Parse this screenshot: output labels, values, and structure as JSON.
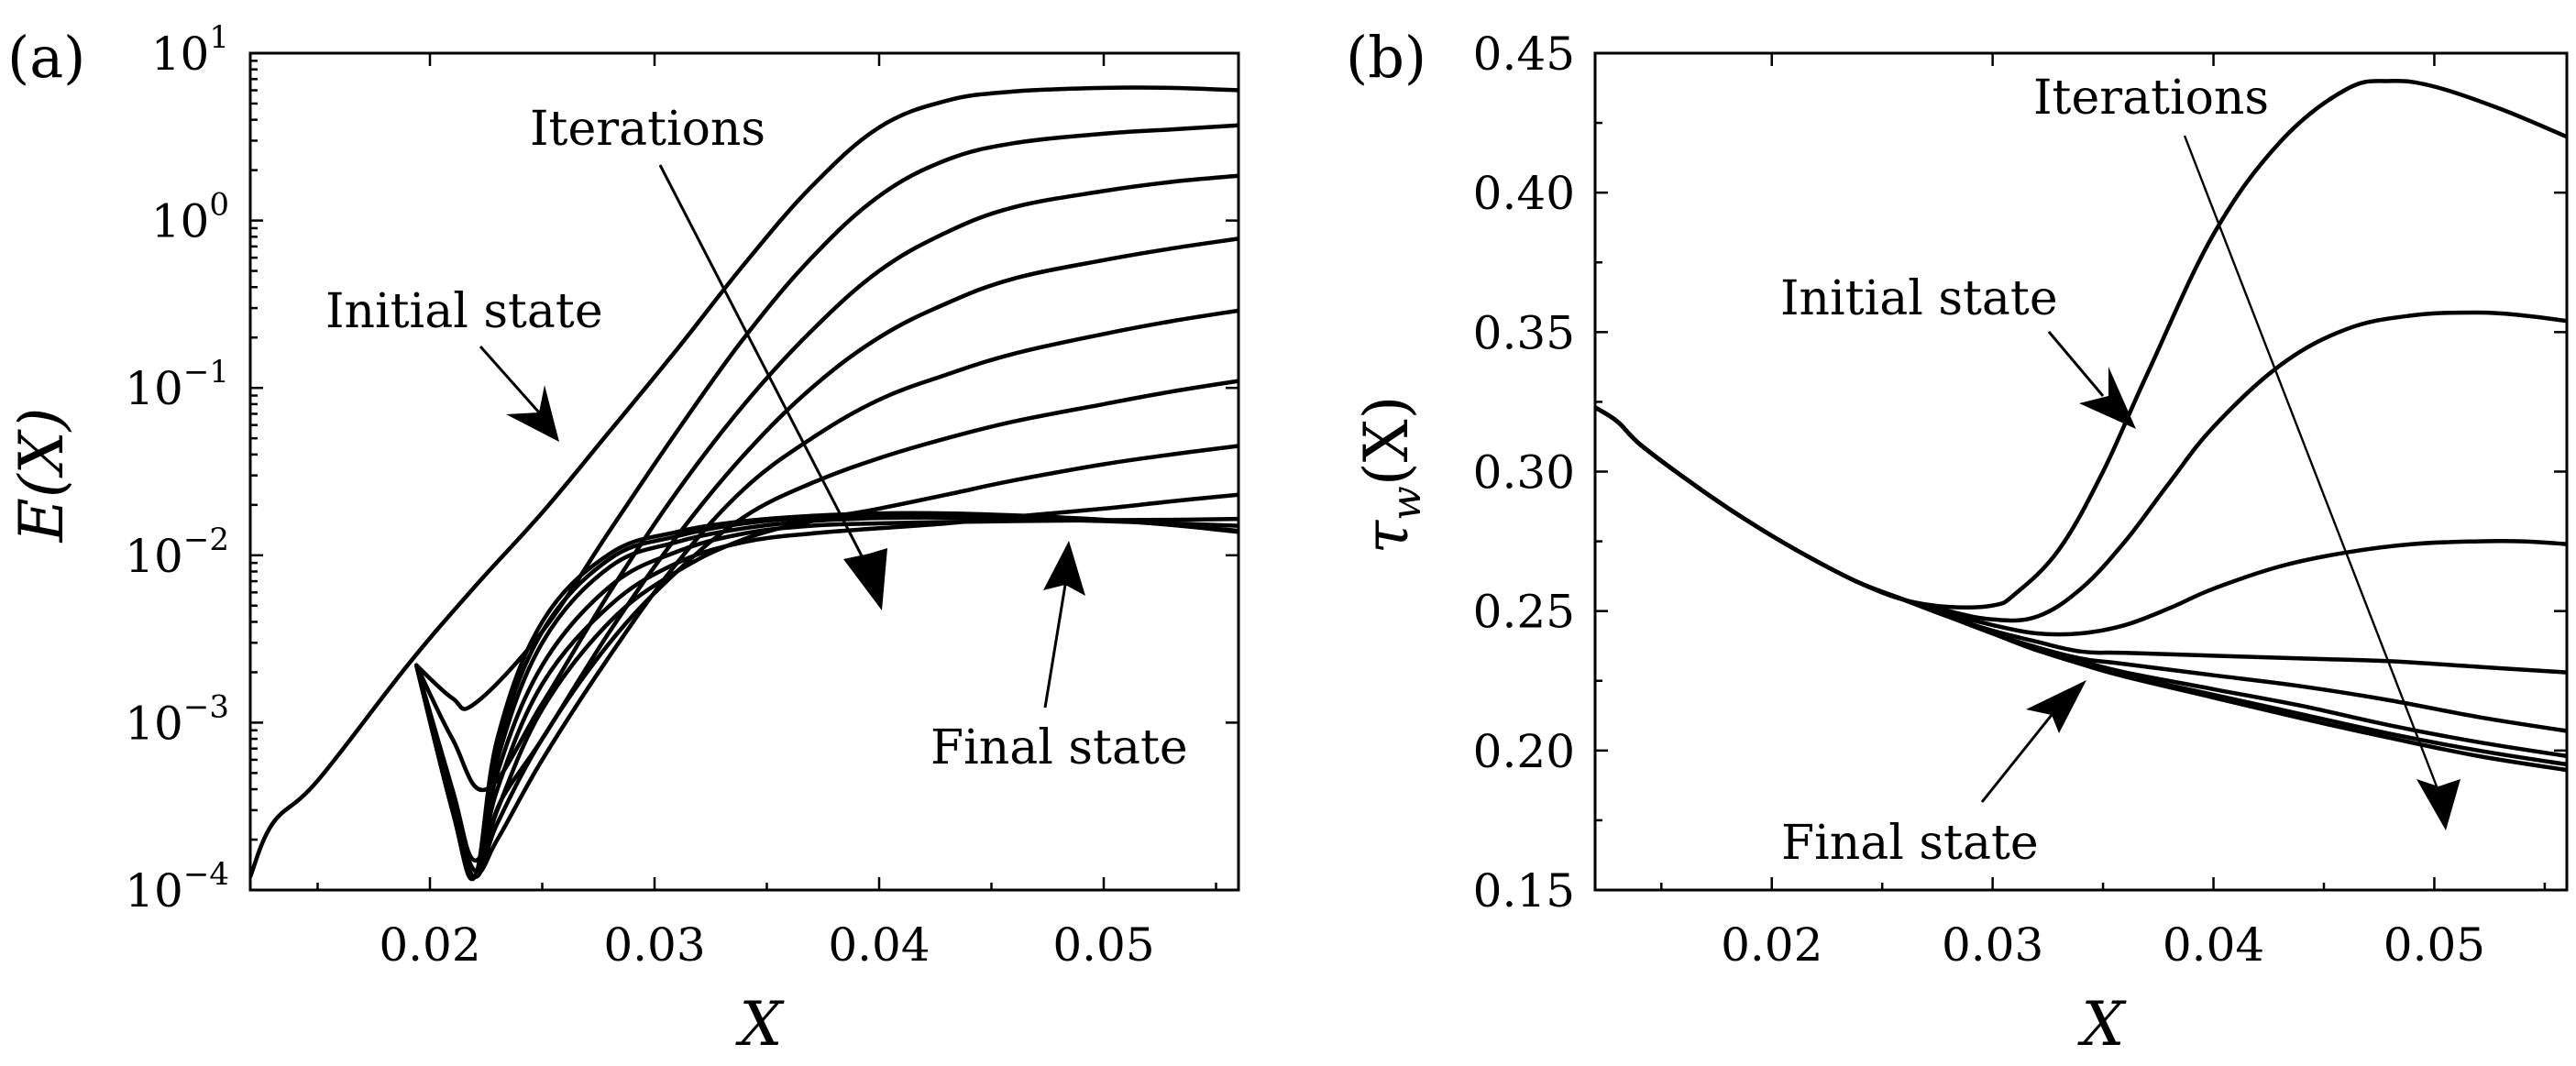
{
  "chart_data": [
    {
      "panel": "(a)",
      "panel_label": "(a)",
      "type": "line",
      "xlabel": "X",
      "ylabel": "E(X)",
      "yscale": "log",
      "xlim": [
        0.012,
        0.056
      ],
      "ylim": [
        0.0001,
        10
      ],
      "xticks": [
        0.02,
        0.03,
        0.04,
        0.05
      ],
      "xtick_labels": [
        "0.02",
        "0.03",
        "0.04",
        "0.05"
      ],
      "yticks": [
        {
          "value": 0.0001,
          "base": "10",
          "exp": "−4"
        },
        {
          "value": 0.001,
          "base": "10",
          "exp": "−3"
        },
        {
          "value": 0.01,
          "base": "10",
          "exp": "−2"
        },
        {
          "value": 0.1,
          "base": "10",
          "exp": "−1"
        },
        {
          "value": 1,
          "base": "10",
          "exp": "0"
        },
        {
          "value": 10,
          "base": "10",
          "exp": "1"
        }
      ],
      "series": [
        {
          "name": "Initial state",
          "x": [
            0.012,
            0.013,
            0.015,
            0.019,
            0.022,
            0.025,
            0.028,
            0.031,
            0.034,
            0.037,
            0.04,
            0.043,
            0.046,
            0.05,
            0.053,
            0.056
          ],
          "y": [
            0.00012,
            0.00025,
            0.00045,
            0.0022,
            0.0065,
            0.018,
            0.055,
            0.17,
            0.55,
            1.6,
            3.6,
            5.2,
            5.9,
            6.2,
            6.2,
            6.0
          ]
        },
        {
          "name": "iteration 1",
          "x": [
            0.0194,
            0.021,
            0.022,
            0.025,
            0.028,
            0.031,
            0.034,
            0.037,
            0.04,
            0.043,
            0.046,
            0.05,
            0.053,
            0.056
          ],
          "y": [
            0.0022,
            0.0014,
            0.0013,
            0.0035,
            0.014,
            0.055,
            0.2,
            0.6,
            1.4,
            2.3,
            2.9,
            3.3,
            3.5,
            3.7
          ]
        },
        {
          "name": "iteration 2",
          "x": [
            0.0194,
            0.021,
            0.0225,
            0.025,
            0.028,
            0.031,
            0.034,
            0.037,
            0.04,
            0.043,
            0.046,
            0.05,
            0.053,
            0.056
          ],
          "y": [
            0.0022,
            0.0008,
            0.0004,
            0.0013,
            0.006,
            0.024,
            0.08,
            0.22,
            0.5,
            0.85,
            1.2,
            1.5,
            1.7,
            1.85
          ]
        },
        {
          "name": "iteration 3",
          "x": [
            0.0194,
            0.021,
            0.022,
            0.0232,
            0.025,
            0.028,
            0.031,
            0.034,
            0.037,
            0.04,
            0.043,
            0.046,
            0.05,
            0.053,
            0.056
          ],
          "y": [
            0.0022,
            0.0004,
            0.00015,
            0.00035,
            0.0008,
            0.0035,
            0.013,
            0.04,
            0.1,
            0.2,
            0.32,
            0.45,
            0.58,
            0.68,
            0.78
          ]
        },
        {
          "name": "iteration 4",
          "x": [
            0.0194,
            0.021,
            0.022,
            0.023,
            0.025,
            0.028,
            0.031,
            0.034,
            0.037,
            0.04,
            0.043,
            0.046,
            0.05,
            0.053,
            0.056
          ],
          "y": [
            0.0022,
            0.00035,
            0.00013,
            0.0002,
            0.0006,
            0.0025,
            0.009,
            0.025,
            0.05,
            0.085,
            0.12,
            0.16,
            0.21,
            0.25,
            0.29
          ]
        },
        {
          "name": "iteration 5",
          "x": [
            0.0194,
            0.021,
            0.022,
            0.023,
            0.025,
            0.028,
            0.031,
            0.034,
            0.037,
            0.04,
            0.043,
            0.046,
            0.05,
            0.053,
            0.056
          ],
          "y": [
            0.0022,
            0.0003,
            0.00012,
            0.00025,
            0.0008,
            0.003,
            0.008,
            0.017,
            0.027,
            0.038,
            0.05,
            0.063,
            0.08,
            0.095,
            0.11
          ]
        },
        {
          "name": "iteration 6",
          "x": [
            0.0194,
            0.021,
            0.022,
            0.023,
            0.025,
            0.028,
            0.031,
            0.034,
            0.037,
            0.04,
            0.043,
            0.046,
            0.05,
            0.053,
            0.056
          ],
          "y": [
            0.0022,
            0.0003,
            0.00012,
            0.0003,
            0.0012,
            0.004,
            0.008,
            0.0125,
            0.016,
            0.019,
            0.023,
            0.028,
            0.035,
            0.04,
            0.045
          ]
        },
        {
          "name": "iteration 7",
          "x": [
            0.0194,
            0.021,
            0.022,
            0.023,
            0.025,
            0.028,
            0.031,
            0.034,
            0.037,
            0.04,
            0.043,
            0.046,
            0.05,
            0.053,
            0.056
          ],
          "y": [
            0.0022,
            0.0003,
            0.00012,
            0.0004,
            0.0017,
            0.005,
            0.009,
            0.012,
            0.0135,
            0.0145,
            0.0155,
            0.017,
            0.019,
            0.021,
            0.023
          ]
        },
        {
          "name": "iteration 8",
          "x": [
            0.0194,
            0.021,
            0.022,
            0.023,
            0.025,
            0.028,
            0.031,
            0.034,
            0.037,
            0.04,
            0.043,
            0.046,
            0.05,
            0.053,
            0.056
          ],
          "y": [
            0.0022,
            0.0003,
            0.00012,
            0.0005,
            0.0022,
            0.0065,
            0.0105,
            0.0135,
            0.015,
            0.0155,
            0.0158,
            0.016,
            0.0162,
            0.0163,
            0.0165
          ]
        },
        {
          "name": "iteration 9",
          "x": [
            0.0194,
            0.021,
            0.022,
            0.023,
            0.025,
            0.028,
            0.031,
            0.034,
            0.037,
            0.04,
            0.043,
            0.046,
            0.05,
            0.053,
            0.056
          ],
          "y": [
            0.0022,
            0.0003,
            0.00012,
            0.0006,
            0.003,
            0.0085,
            0.012,
            0.0145,
            0.016,
            0.0167,
            0.0168,
            0.0165,
            0.016,
            0.0155,
            0.015
          ]
        },
        {
          "name": "iteration 10",
          "x": [
            0.0194,
            0.021,
            0.022,
            0.023,
            0.025,
            0.028,
            0.031,
            0.034,
            0.037,
            0.04,
            0.043,
            0.046,
            0.05,
            0.053,
            0.056
          ],
          "y": [
            0.0022,
            0.0003,
            0.00012,
            0.0007,
            0.0035,
            0.0095,
            0.013,
            0.0155,
            0.0168,
            0.0174,
            0.0174,
            0.017,
            0.0162,
            0.0152,
            0.014
          ]
        },
        {
          "name": "Final state",
          "x": [
            0.0194,
            0.021,
            0.022,
            0.023,
            0.025,
            0.028,
            0.031,
            0.034,
            0.037,
            0.04,
            0.043,
            0.046,
            0.05,
            0.053,
            0.056
          ],
          "y": [
            0.0022,
            0.0003,
            0.00012,
            0.0008,
            0.004,
            0.0102,
            0.0138,
            0.016,
            0.0172,
            0.0178,
            0.0178,
            0.0173,
            0.0163,
            0.0152,
            0.0138
          ]
        }
      ],
      "annotations": [
        {
          "id": "initial",
          "text": "Initial state"
        },
        {
          "id": "iterations",
          "text": "Iterations"
        },
        {
          "id": "final",
          "text": "Final state"
        }
      ]
    },
    {
      "panel": "(b)",
      "panel_label": "(b)",
      "type": "line",
      "xlabel": "X",
      "ylabel": "τw(X)",
      "ylabel_main": "τ",
      "ylabel_sub": "w",
      "ylabel_arg": "(X)",
      "yscale": "linear",
      "xlim": [
        0.012,
        0.056
      ],
      "ylim": [
        0.15,
        0.45
      ],
      "xticks": [
        0.02,
        0.03,
        0.04,
        0.05
      ],
      "xtick_labels": [
        "0.02",
        "0.03",
        "0.04",
        "0.05"
      ],
      "yticks": [
        0.15,
        0.2,
        0.25,
        0.3,
        0.35,
        0.4,
        0.45
      ],
      "ytick_labels": [
        "0.15",
        "0.20",
        "0.25",
        "0.30",
        "0.35",
        "0.40",
        "0.45"
      ],
      "base_curve": {
        "x": [
          0.012,
          0.013,
          0.014,
          0.016,
          0.018,
          0.02,
          0.022,
          0.024,
          0.026
        ],
        "y": [
          0.323,
          0.318,
          0.31,
          0.298,
          0.287,
          0.277,
          0.268,
          0.26,
          0.254
        ]
      },
      "series": [
        {
          "name": "Initial state",
          "x": [
            0.026,
            0.028,
            0.03,
            0.031,
            0.033,
            0.035,
            0.037,
            0.04,
            0.043,
            0.046,
            0.048,
            0.05,
            0.053,
            0.056
          ],
          "y": [
            0.254,
            0.2515,
            0.252,
            0.256,
            0.272,
            0.3,
            0.335,
            0.385,
            0.418,
            0.437,
            0.44,
            0.438,
            0.43,
            0.42
          ]
        },
        {
          "name": "iteration 1",
          "x": [
            0.026,
            0.028,
            0.03,
            0.032,
            0.034,
            0.036,
            0.038,
            0.04,
            0.043,
            0.046,
            0.049,
            0.052,
            0.054,
            0.056
          ],
          "y": [
            0.254,
            0.25,
            0.247,
            0.248,
            0.258,
            0.275,
            0.296,
            0.316,
            0.338,
            0.351,
            0.356,
            0.357,
            0.356,
            0.354
          ]
        },
        {
          "name": "iteration 2",
          "x": [
            0.026,
            0.028,
            0.03,
            0.032,
            0.034,
            0.036,
            0.038,
            0.04,
            0.043,
            0.046,
            0.049,
            0.052,
            0.054,
            0.056
          ],
          "y": [
            0.254,
            0.249,
            0.245,
            0.242,
            0.242,
            0.245,
            0.251,
            0.258,
            0.266,
            0.271,
            0.274,
            0.275,
            0.275,
            0.274
          ]
        },
        {
          "name": "iteration 3",
          "x": [
            0.026,
            0.028,
            0.03,
            0.032,
            0.034,
            0.036,
            0.04,
            0.044,
            0.048,
            0.052,
            0.056
          ],
          "y": [
            0.254,
            0.248,
            0.243,
            0.239,
            0.2355,
            0.235,
            0.234,
            0.233,
            0.232,
            0.23,
            0.228
          ]
        },
        {
          "name": "iteration 4",
          "x": [
            0.026,
            0.028,
            0.03,
            0.032,
            0.034,
            0.036,
            0.04,
            0.044,
            0.048,
            0.052,
            0.056
          ],
          "y": [
            0.254,
            0.248,
            0.242,
            0.237,
            0.233,
            0.231,
            0.227,
            0.223,
            0.218,
            0.212,
            0.207
          ]
        },
        {
          "name": "iteration 5",
          "x": [
            0.026,
            0.028,
            0.03,
            0.032,
            0.034,
            0.036,
            0.04,
            0.044,
            0.048,
            0.052,
            0.056
          ],
          "y": [
            0.254,
            0.248,
            0.242,
            0.236,
            0.232,
            0.228,
            0.222,
            0.216,
            0.209,
            0.203,
            0.198
          ]
        },
        {
          "name": "iteration 6",
          "x": [
            0.026,
            0.028,
            0.03,
            0.032,
            0.034,
            0.036,
            0.04,
            0.044,
            0.048,
            0.052,
            0.056
          ],
          "y": [
            0.254,
            0.248,
            0.242,
            0.236,
            0.2315,
            0.227,
            0.22,
            0.213,
            0.206,
            0.2,
            0.195
          ]
        },
        {
          "name": "Final state",
          "x": [
            0.026,
            0.028,
            0.03,
            0.032,
            0.034,
            0.036,
            0.04,
            0.044,
            0.048,
            0.052,
            0.056
          ],
          "y": [
            0.254,
            0.248,
            0.242,
            0.236,
            0.231,
            0.2265,
            0.219,
            0.2115,
            0.2045,
            0.198,
            0.193
          ]
        }
      ],
      "annotations": [
        {
          "id": "iterations",
          "text": "Iterations"
        },
        {
          "id": "initial",
          "text": "Initial state"
        },
        {
          "id": "final",
          "text": "Final state"
        }
      ]
    }
  ]
}
